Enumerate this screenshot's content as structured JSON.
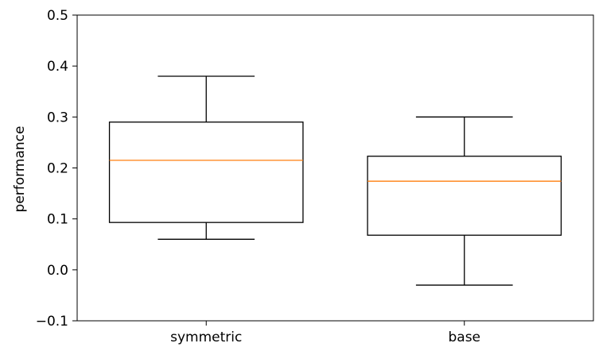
{
  "chart_data": {
    "type": "box",
    "title": "",
    "xlabel": "",
    "ylabel": "performance",
    "ylim": [
      -0.1,
      0.5
    ],
    "yticks": [
      -0.1,
      0.0,
      0.1,
      0.2,
      0.3,
      0.4,
      0.5
    ],
    "ytick_labels": [
      "−0.1",
      "0.0",
      "0.1",
      "0.2",
      "0.3",
      "0.4",
      "0.5"
    ],
    "categories": [
      "symmetric",
      "base"
    ],
    "boxes": [
      {
        "category": "symmetric",
        "whisker_low": 0.06,
        "q1": 0.093,
        "median": 0.215,
        "q3": 0.29,
        "whisker_high": 0.38
      },
      {
        "category": "base",
        "whisker_low": -0.03,
        "q1": 0.068,
        "median": 0.174,
        "q3": 0.223,
        "whisker_high": 0.3
      }
    ],
    "grid": false,
    "colors": {
      "box": "#000000",
      "median": "#ff7f0e"
    }
  }
}
